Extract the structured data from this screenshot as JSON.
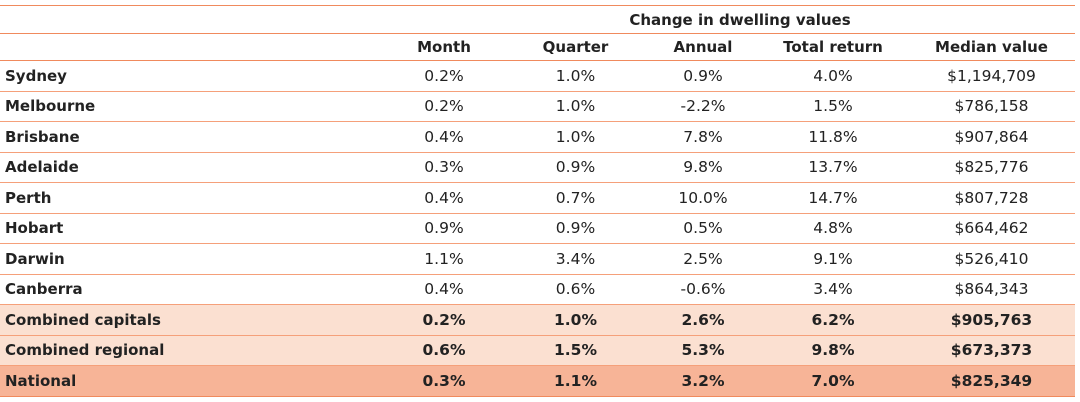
{
  "group_header": "Change in dwelling values",
  "columns": [
    "Month",
    "Quarter",
    "Annual",
    "Total return",
    "Median value"
  ],
  "rows": [
    {
      "name": "Sydney",
      "values": [
        "0.2%",
        "1.0%",
        "0.9%",
        "4.0%",
        "$1,194,709"
      ]
    },
    {
      "name": "Melbourne",
      "values": [
        "0.2%",
        "1.0%",
        "-2.2%",
        "1.5%",
        "$786,158"
      ]
    },
    {
      "name": "Brisbane",
      "values": [
        "0.4%",
        "1.0%",
        "7.8%",
        "11.8%",
        "$907,864"
      ]
    },
    {
      "name": "Adelaide",
      "values": [
        "0.3%",
        "0.9%",
        "9.8%",
        "13.7%",
        "$825,776"
      ]
    },
    {
      "name": "Perth",
      "values": [
        "0.4%",
        "0.7%",
        "10.0%",
        "14.7%",
        "$807,728"
      ]
    },
    {
      "name": "Hobart",
      "values": [
        "0.9%",
        "0.9%",
        "0.5%",
        "4.8%",
        "$664,462"
      ]
    },
    {
      "name": "Darwin",
      "values": [
        "1.1%",
        "3.4%",
        "2.5%",
        "9.1%",
        "$526,410"
      ]
    },
    {
      "name": "Canberra",
      "values": [
        "0.4%",
        "0.6%",
        "-0.6%",
        "3.4%",
        "$864,343"
      ]
    },
    {
      "name": "Combined capitals",
      "values": [
        "0.2%",
        "1.0%",
        "2.6%",
        "6.2%",
        "$905,763"
      ]
    },
    {
      "name": "Combined regional",
      "values": [
        "0.6%",
        "1.5%",
        "5.3%",
        "9.8%",
        "$673,373"
      ]
    },
    {
      "name": "National",
      "values": [
        "0.3%",
        "1.1%",
        "3.2%",
        "7.0%",
        "$825,349"
      ]
    }
  ],
  "colors": {
    "accent_line": "#f08a5d",
    "combined_fill": "#fbe0d1",
    "national_fill": "#f7b497"
  }
}
